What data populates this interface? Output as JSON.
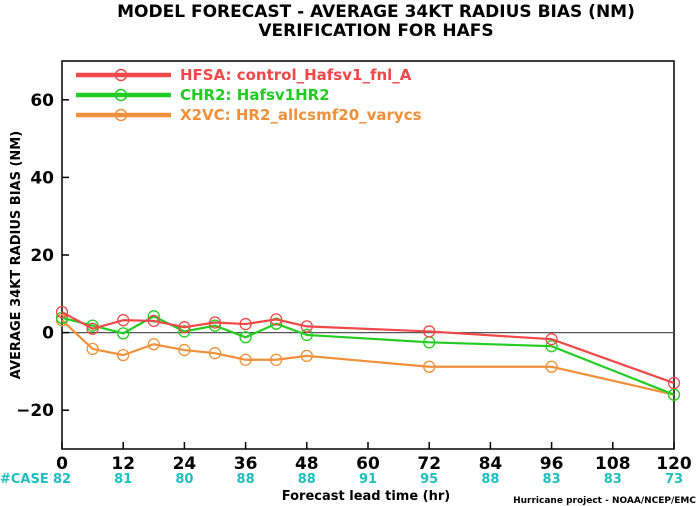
{
  "title_line1": "MODEL FORECAST - AVERAGE 34KT RADIUS BIAS (NM)",
  "title_line2": "VERIFICATION FOR HAFS",
  "credit": "Hurricane project - NOAA/NCEP/EMC",
  "case_header": "#CASE",
  "colors": {
    "case_text": "#1fbfbf",
    "zero_line": "#555555"
  },
  "chart_data": {
    "type": "line",
    "xlabel": "Forecast lead time (hr)",
    "ylabel": "AVERAGE 34KT RADIUS BIAS (NM)",
    "xlim": [
      0,
      120
    ],
    "ylim": [
      -30,
      70
    ],
    "xticks": [
      0,
      12,
      24,
      36,
      48,
      60,
      72,
      84,
      96,
      108,
      120
    ],
    "yticks": [
      -20,
      0,
      20,
      40,
      60
    ],
    "ytick_labels": [
      "−20",
      "0",
      "20",
      "40",
      "60"
    ],
    "reference_line": 0,
    "legend_position": "top-left",
    "series": [
      {
        "name": "HFSA: control_Hafsv1_fnl_A",
        "color": "#f04848",
        "x": [
          0,
          6,
          12,
          18,
          24,
          30,
          36,
          42,
          48,
          72,
          96,
          120
        ],
        "y": [
          5.3,
          1.0,
          3.2,
          3.0,
          1.4,
          2.6,
          2.2,
          3.4,
          1.6,
          0.3,
          -1.7,
          -13.0
        ]
      },
      {
        "name": "CHR2: Hafsv1HR2",
        "color": "#22cc22",
        "x": [
          0,
          6,
          12,
          18,
          24,
          30,
          36,
          42,
          48,
          72,
          96,
          120
        ],
        "y": [
          3.8,
          1.8,
          -0.2,
          4.2,
          0.3,
          1.8,
          -1.2,
          2.3,
          -0.6,
          -2.5,
          -3.5,
          -16.0
        ]
      },
      {
        "name": "X2VC: HR2_allcsmf20_varycs",
        "color": "#f0903a",
        "x": [
          0,
          6,
          12,
          18,
          24,
          30,
          36,
          42,
          48,
          72,
          96,
          120
        ],
        "y": [
          3.2,
          -4.2,
          -5.8,
          -3.0,
          -4.5,
          -5.3,
          -7.0,
          -7.0,
          -6.0,
          -8.8,
          -8.8,
          -16.0
        ]
      }
    ],
    "case_counts": [
      {
        "x": 0,
        "label": "82"
      },
      {
        "x": 12,
        "label": "81"
      },
      {
        "x": 24,
        "label": "80"
      },
      {
        "x": 36,
        "label": "88"
      },
      {
        "x": 48,
        "label": "88"
      },
      {
        "x": 60,
        "label": "91"
      },
      {
        "x": 72,
        "label": "95"
      },
      {
        "x": 84,
        "label": "88"
      },
      {
        "x": 96,
        "label": "83"
      },
      {
        "x": 108,
        "label": "83"
      },
      {
        "x": 120,
        "label": "73"
      }
    ]
  }
}
